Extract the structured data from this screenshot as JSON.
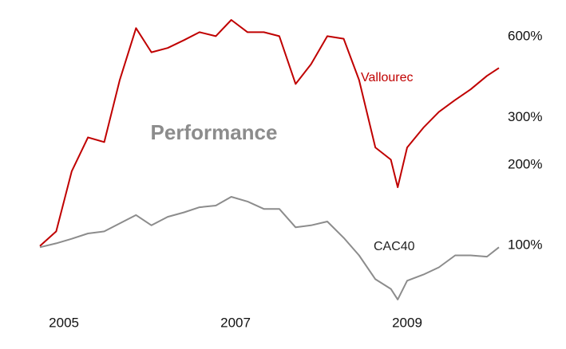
{
  "chart_data": {
    "type": "line",
    "annotation": "Performance",
    "log_scale_y": true,
    "grid": false,
    "x": [
      2004.72,
      2004.91,
      2005.09,
      2005.28,
      2005.47,
      2005.65,
      2005.84,
      2006.02,
      2006.21,
      2006.4,
      2006.58,
      2006.77,
      2006.95,
      2007.14,
      2007.33,
      2007.51,
      2007.7,
      2007.88,
      2008.07,
      2008.26,
      2008.44,
      2008.63,
      2008.81,
      2008.89,
      2009.0,
      2009.19,
      2009.37,
      2009.56,
      2009.74,
      2009.93,
      2010.07
    ],
    "series": [
      {
        "name": "Vallourec",
        "color": "#c00000",
        "values": [
          99.6,
          113,
          189,
          253,
          243,
          414,
          646,
          525,
          545,
          583,
          624,
          603,
          693,
          624,
          624,
          603,
          400,
          474,
          603,
          590,
          414,
          232,
          209,
          165,
          232,
          275,
          315,
          349,
          382,
          429,
          459
        ]
      },
      {
        "name": "CAC40",
        "color": "#8c8c8c",
        "values": [
          98.6,
          102,
          106,
          111,
          113,
          121,
          130,
          119,
          128,
          133,
          139,
          141,
          152,
          146,
          137,
          137,
          117,
          119,
          123,
          107,
          92,
          75,
          69,
          63,
          74,
          78,
          83,
          92,
          92,
          91,
          98.6
        ]
      }
    ],
    "xlim": [
      2004.72,
      2010.07
    ],
    "xticks": [
      2005,
      2007,
      2009
    ],
    "ylim": [
      60,
      800
    ],
    "yticks": [
      {
        "value": 100,
        "label": "100%"
      },
      {
        "value": 200,
        "label": "200%"
      },
      {
        "value": 300,
        "label": "300%"
      },
      {
        "value": 600,
        "label": "600%"
      }
    ]
  }
}
